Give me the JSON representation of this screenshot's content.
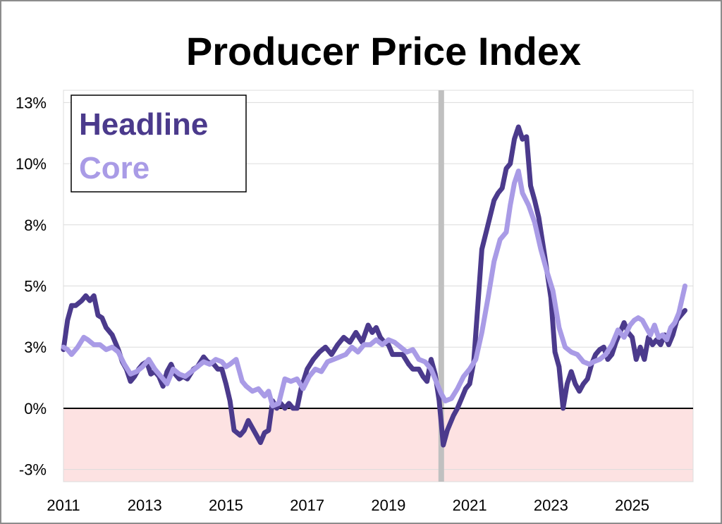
{
  "chart_data": {
    "type": "line",
    "title": "Producer Price Index",
    "xlabel": "",
    "ylabel": "",
    "xlim": [
      2011.0,
      2026.5
    ],
    "ylim": [
      -3,
      13
    ],
    "ytick_labels": [
      "13%",
      "10%",
      "8%",
      "5%",
      "3%",
      "0%",
      "-3%"
    ],
    "ytick_values": [
      12.5,
      10,
      7.5,
      5,
      2.5,
      0,
      -2.5
    ],
    "xtick_labels": [
      "2011",
      "2013",
      "2015",
      "2017",
      "2019",
      "2021",
      "2023",
      "2025"
    ],
    "xtick_values": [
      2011,
      2013,
      2015,
      2017,
      2019,
      2021,
      2023,
      2025
    ],
    "grid": "horizontal",
    "legend_position": "top-left",
    "negative_region_color": "#fde2e2",
    "zero_line_color": "#000000",
    "recession_band": {
      "x": 2020.3,
      "color": "#c0c0c0"
    },
    "series": [
      {
        "name": "Headline",
        "color": "#4b3a8c",
        "x": [
          2011.0,
          2011.1,
          2011.2,
          2011.3,
          2011.45,
          2011.55,
          2011.65,
          2011.75,
          2011.85,
          2011.95,
          2012.05,
          2012.2,
          2012.35,
          2012.45,
          2012.55,
          2012.65,
          2012.75,
          2012.85,
          2012.95,
          2013.05,
          2013.15,
          2013.25,
          2013.35,
          2013.45,
          2013.55,
          2013.65,
          2013.75,
          2013.85,
          2013.95,
          2014.05,
          2014.2,
          2014.3,
          2014.45,
          2014.55,
          2014.7,
          2014.8,
          2014.9,
          2015.0,
          2015.1,
          2015.2,
          2015.35,
          2015.45,
          2015.55,
          2015.65,
          2015.75,
          2015.85,
          2015.95,
          2016.05,
          2016.15,
          2016.25,
          2016.35,
          2016.45,
          2016.55,
          2016.65,
          2016.75,
          2016.85,
          2017.0,
          2017.15,
          2017.3,
          2017.45,
          2017.6,
          2017.75,
          2017.9,
          2018.05,
          2018.2,
          2018.35,
          2018.5,
          2018.6,
          2018.7,
          2018.8,
          2018.9,
          2019.0,
          2019.1,
          2019.25,
          2019.35,
          2019.5,
          2019.6,
          2019.75,
          2019.85,
          2019.95,
          2020.05,
          2020.15,
          2020.25,
          2020.35,
          2020.45,
          2020.6,
          2020.7,
          2020.8,
          2020.9,
          2021.0,
          2021.1,
          2021.2,
          2021.3,
          2021.45,
          2021.6,
          2021.7,
          2021.8,
          2021.9,
          2022.0,
          2022.1,
          2022.2,
          2022.3,
          2022.4,
          2022.5,
          2022.6,
          2022.7,
          2022.85,
          2023.0,
          2023.1,
          2023.2,
          2023.3,
          2023.4,
          2023.5,
          2023.6,
          2023.7,
          2023.8,
          2023.9,
          2024.0,
          2024.1,
          2024.2,
          2024.3,
          2024.4,
          2024.5,
          2024.6,
          2024.7,
          2024.8,
          2024.9,
          2025.0,
          2025.1,
          2025.2,
          2025.3,
          2025.4,
          2025.5,
          2025.6,
          2025.7,
          2025.8,
          2025.9,
          2026.0,
          2026.1,
          2026.2,
          2026.3
        ],
        "values": [
          2.4,
          3.6,
          4.2,
          4.2,
          4.4,
          4.6,
          4.4,
          4.6,
          3.8,
          3.7,
          3.3,
          3.0,
          2.4,
          1.9,
          1.6,
          1.1,
          1.3,
          1.6,
          1.8,
          1.9,
          1.4,
          1.5,
          1.3,
          0.9,
          1.5,
          1.8,
          1.4,
          1.2,
          1.3,
          1.2,
          1.6,
          1.7,
          2.1,
          1.9,
          1.8,
          1.6,
          1.6,
          1.0,
          0.3,
          -0.9,
          -1.1,
          -0.9,
          -0.5,
          -0.8,
          -1.1,
          -1.4,
          -1.0,
          -0.9,
          0.3,
          0.0,
          0.2,
          0.0,
          0.2,
          0.0,
          0.0,
          0.8,
          1.6,
          2.0,
          2.3,
          2.5,
          2.2,
          2.6,
          2.9,
          2.7,
          3.1,
          2.7,
          3.4,
          3.1,
          3.3,
          2.9,
          2.7,
          2.6,
          2.2,
          2.2,
          2.2,
          1.8,
          1.6,
          1.6,
          1.3,
          1.1,
          2.0,
          1.4,
          0.3,
          -1.5,
          -0.9,
          -0.3,
          0.0,
          0.4,
          0.8,
          1.0,
          1.9,
          4.2,
          6.5,
          7.5,
          8.5,
          8.8,
          9.0,
          9.8,
          10.0,
          11.0,
          11.5,
          11.0,
          11.1,
          9.1,
          8.5,
          7.8,
          6.2,
          4.5,
          2.3,
          1.7,
          0.0,
          1.0,
          1.5,
          1.0,
          0.7,
          1.0,
          1.2,
          1.8,
          2.2,
          2.4,
          2.5,
          2.0,
          2.2,
          2.7,
          3.1,
          3.5,
          3.1,
          2.9,
          2.0,
          2.5,
          2.0,
          2.9,
          2.6,
          2.8,
          2.6,
          3.0,
          2.6,
          3.0,
          3.6,
          3.8,
          4.0
        ]
      },
      {
        "name": "Core",
        "color": "#a99be6",
        "x": [
          2011.0,
          2011.1,
          2011.2,
          2011.35,
          2011.5,
          2011.6,
          2011.75,
          2011.9,
          2012.05,
          2012.2,
          2012.35,
          2012.5,
          2012.65,
          2012.8,
          2012.95,
          2013.1,
          2013.25,
          2013.4,
          2013.55,
          2013.7,
          2013.85,
          2014.0,
          2014.15,
          2014.3,
          2014.45,
          2014.6,
          2014.75,
          2014.9,
          2015.0,
          2015.1,
          2015.25,
          2015.4,
          2015.5,
          2015.65,
          2015.8,
          2015.95,
          2016.05,
          2016.15,
          2016.3,
          2016.45,
          2016.6,
          2016.75,
          2016.9,
          2017.05,
          2017.2,
          2017.35,
          2017.5,
          2017.65,
          2017.8,
          2017.95,
          2018.1,
          2018.25,
          2018.4,
          2018.55,
          2018.7,
          2018.85,
          2019.0,
          2019.15,
          2019.3,
          2019.45,
          2019.6,
          2019.75,
          2019.9,
          2020.05,
          2020.2,
          2020.3,
          2020.4,
          2020.55,
          2020.7,
          2020.85,
          2021.0,
          2021.15,
          2021.3,
          2021.45,
          2021.6,
          2021.75,
          2021.9,
          2022.0,
          2022.1,
          2022.2,
          2022.3,
          2022.45,
          2022.6,
          2022.75,
          2022.9,
          2023.05,
          2023.2,
          2023.35,
          2023.5,
          2023.65,
          2023.8,
          2023.95,
          2024.05,
          2024.2,
          2024.35,
          2024.5,
          2024.65,
          2024.8,
          2024.95,
          2025.05,
          2025.15,
          2025.25,
          2025.35,
          2025.45,
          2025.55,
          2025.65,
          2025.75,
          2025.85,
          2025.95,
          2026.05,
          2026.15,
          2026.3
        ],
        "values": [
          2.5,
          2.4,
          2.2,
          2.5,
          2.9,
          2.8,
          2.6,
          2.6,
          2.4,
          2.5,
          2.3,
          1.8,
          1.4,
          1.5,
          1.7,
          2.0,
          1.6,
          1.3,
          1.0,
          1.6,
          1.4,
          1.3,
          1.5,
          1.7,
          1.9,
          1.8,
          2.0,
          1.9,
          1.7,
          1.8,
          2.0,
          1.1,
          0.9,
          0.7,
          0.8,
          0.5,
          0.7,
          0.1,
          0.2,
          1.2,
          1.1,
          1.2,
          0.8,
          1.3,
          1.6,
          1.5,
          1.9,
          2.0,
          2.1,
          2.2,
          2.5,
          2.3,
          2.6,
          2.6,
          2.8,
          2.6,
          2.8,
          2.7,
          2.5,
          2.3,
          2.4,
          2.0,
          1.9,
          1.6,
          1.0,
          0.6,
          0.3,
          0.4,
          0.8,
          1.3,
          1.6,
          2.0,
          3.1,
          4.5,
          6.0,
          6.9,
          7.2,
          8.3,
          9.2,
          9.7,
          8.8,
          8.3,
          7.6,
          6.5,
          5.6,
          4.8,
          3.3,
          2.5,
          2.3,
          2.2,
          1.9,
          1.8,
          1.9,
          2.0,
          2.2,
          2.6,
          3.2,
          2.9,
          3.4,
          3.6,
          3.7,
          3.6,
          3.3,
          3.0,
          3.4,
          2.9,
          3.0,
          2.8,
          3.3,
          3.5,
          3.9,
          5.0
        ]
      }
    ]
  }
}
